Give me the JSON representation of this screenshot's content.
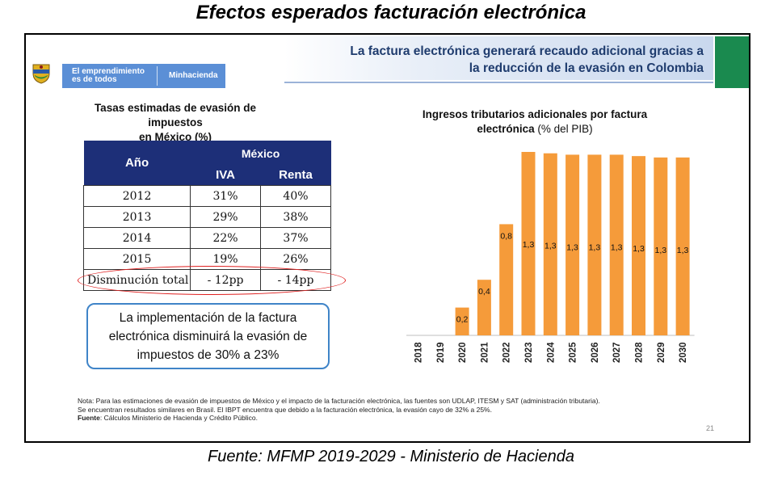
{
  "page_title": "Efectos esperados facturación electrónica",
  "header": {
    "brand_line1": "El emprendimiento",
    "brand_line2": "es de todos",
    "brand_right": "Minhacienda",
    "headline_line1": "La factura electrónica generará recaudo adicional gracias a",
    "headline_line2": "la reducción de la evasión en Colombia"
  },
  "table": {
    "title_line1": "Tasas estimadas de evasión de impuestos",
    "title_prefix": "en ",
    "title_country": "México",
    "title_suffix": " (%)",
    "header_year": "Año",
    "header_group": "México",
    "header_iva": "IVA",
    "header_renta": "Renta",
    "rows": [
      {
        "year": "2012",
        "iva": "31%",
        "renta": "40%"
      },
      {
        "year": "2013",
        "iva": "29%",
        "renta": "38%"
      },
      {
        "year": "2014",
        "iva": "22%",
        "renta": "37%"
      },
      {
        "year": "2015",
        "iva": "19%",
        "renta": "26%"
      }
    ],
    "total": {
      "label": "Disminución total",
      "iva": "- 12pp",
      "renta": "- 14pp"
    }
  },
  "callout": {
    "line1": "La implementación de la factura",
    "line2": "electrónica disminuirá la evasión de",
    "line3": "impuestos de 30% a 23%"
  },
  "chart_title": {
    "line1": "Ingresos tributarios adicionales por factura",
    "line2_bold": "electrónica",
    "line2_unit": " (% del PIB)"
  },
  "chart_data": {
    "type": "bar",
    "title": "Ingresos tributarios adicionales por factura electrónica (% del PIB)",
    "categories": [
      "2018",
      "2019",
      "2020",
      "2021",
      "2022",
      "2023",
      "2024",
      "2025",
      "2026",
      "2027",
      "2028",
      "2029",
      "2030"
    ],
    "values": [
      0,
      0,
      0.2,
      0.4,
      0.8,
      1.32,
      1.31,
      1.3,
      1.3,
      1.3,
      1.29,
      1.28,
      1.28
    ],
    "data_labels": [
      "",
      "",
      "0,2",
      "0,4",
      "0,8",
      "1,3",
      "1,3",
      "1,3",
      "1,3",
      "1,3",
      "1,3",
      "1,3",
      "1,3"
    ],
    "color": "#f59b3a",
    "ylim": [
      0,
      1.32
    ],
    "grid": false
  },
  "note": {
    "line1": "Nota: Para las estimaciones de evasión de impuestos de México y el impacto de la facturación electrónica, las fuentes son UDLAP, ITESM y SAT (administración tributaria).",
    "line2": "Se encuentran resultados similares en Brasil. El IBPT encuentra que debido a la facturación electrónica, la evasión cayo de 32% a 25%.",
    "source_label": "Fuente",
    "source_text": ": Cálculos Ministerio de Hacienda y Crédito Público."
  },
  "page_number": "21",
  "bottom_source": "Fuente: MFMP 2019-2029 - Ministerio de Hacienda"
}
